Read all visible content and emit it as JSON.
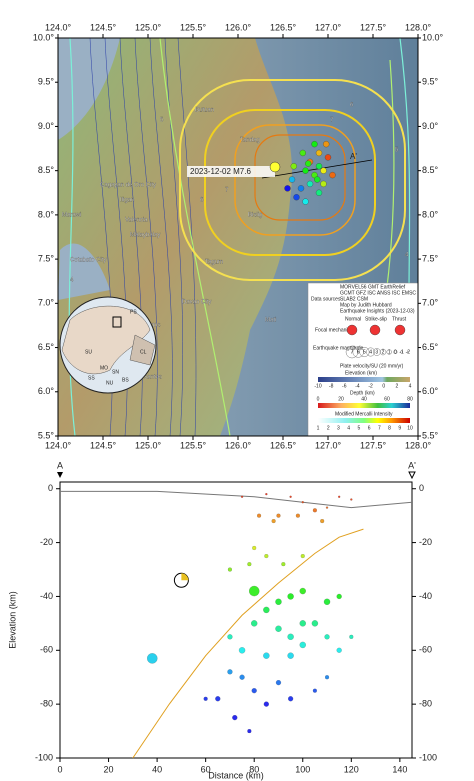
{
  "map": {
    "lon_ticks": [
      {
        "value": 124,
        "label": "124.0°"
      },
      {
        "value": 124.5,
        "label": "124.5°"
      },
      {
        "value": 125,
        "label": "125.0°"
      },
      {
        "value": 125.5,
        "label": "125.5°"
      },
      {
        "value": 126,
        "label": "126.0°"
      },
      {
        "value": 126.5,
        "label": "126.5°"
      },
      {
        "value": 127,
        "label": "127.0°"
      },
      {
        "value": 127.5,
        "label": "127.5°"
      },
      {
        "value": 128,
        "label": "128.0°"
      }
    ],
    "lat_ticks": [
      {
        "value": 10,
        "label": "10.0°"
      },
      {
        "value": 9.5,
        "label": "9.5°"
      },
      {
        "value": 9,
        "label": "9.0°"
      },
      {
        "value": 8.5,
        "label": "8.5°"
      },
      {
        "value": 8,
        "label": "8.0°"
      },
      {
        "value": 7.5,
        "label": "7.5°"
      },
      {
        "value": 7,
        "label": "7.0°"
      },
      {
        "value": 6.5,
        "label": "6.5°"
      },
      {
        "value": 6,
        "label": "6.0°"
      },
      {
        "value": 5.5,
        "label": "5.5°"
      }
    ],
    "lonlim": [
      124,
      128
    ],
    "latlim": [
      5.5,
      10
    ],
    "event_label": "2023-12-02 M7.6",
    "profile_start": "A",
    "profile_end": "A'",
    "places": [
      "Cagayan de Oro City",
      "Iligan",
      "Marawi",
      "Valencia",
      "Malaybalay",
      "Davao City",
      "Tagum",
      "Digos",
      "General Santos",
      "Bislig",
      "Tandag",
      "Mati",
      "Cotabato City",
      "Butuan"
    ],
    "contour_labels": [
      "6",
      "5",
      "7",
      "4",
      "6",
      "5",
      "7",
      "4"
    ],
    "inset_labels": [
      "PS",
      "SU",
      "CL",
      "MO",
      "SS",
      "SN",
      "BS",
      "NU"
    ],
    "events": [
      {
        "lon": 126.62,
        "lat": 8.55,
        "depth": 30
      },
      {
        "lon": 126.75,
        "lat": 8.5,
        "depth": 40
      },
      {
        "lon": 126.8,
        "lat": 8.6,
        "depth": 10
      },
      {
        "lon": 126.85,
        "lat": 8.45,
        "depth": 35
      },
      {
        "lon": 126.9,
        "lat": 8.55,
        "depth": 45
      },
      {
        "lon": 126.95,
        "lat": 8.5,
        "depth": 20
      },
      {
        "lon": 126.8,
        "lat": 8.35,
        "depth": 55
      },
      {
        "lon": 126.7,
        "lat": 8.3,
        "depth": 70
      },
      {
        "lon": 126.9,
        "lat": 8.7,
        "depth": 15
      },
      {
        "lon": 126.85,
        "lat": 8.8,
        "depth": 40
      },
      {
        "lon": 127.0,
        "lat": 8.65,
        "depth": 5
      },
      {
        "lon": 126.65,
        "lat": 8.2,
        "depth": 75
      },
      {
        "lon": 126.75,
        "lat": 8.15,
        "depth": 60
      },
      {
        "lon": 126.95,
        "lat": 8.35,
        "depth": 25
      },
      {
        "lon": 127.05,
        "lat": 8.45,
        "depth": 8
      },
      {
        "lon": 126.6,
        "lat": 8.4,
        "depth": 65
      },
      {
        "lon": 126.9,
        "lat": 8.25,
        "depth": 50
      },
      {
        "lon": 126.72,
        "lat": 8.7,
        "depth": 35
      },
      {
        "lon": 126.98,
        "lat": 8.8,
        "depth": 12
      },
      {
        "lon": 126.55,
        "lat": 8.3,
        "depth": 80
      },
      {
        "lon": 126.88,
        "lat": 8.4,
        "depth": 42
      },
      {
        "lon": 126.78,
        "lat": 8.58,
        "depth": 38
      }
    ],
    "legend": {
      "data_sources_title": "Data sources",
      "data_sources": [
        "MORVEL56 GMT EarthRelief",
        "GCMT GFZ ISC ANSS ISC EMSC",
        "SLAB2 CSM",
        "Map by Judith Hubbard",
        "Earthquake Insights (2023-12-03)"
      ],
      "mech_types": [
        "Normal",
        "Strike-slip",
        "Thrust"
      ],
      "mech_title": "Focal mechanism",
      "mag_title": "Earthquake magnitude",
      "mags": [
        7,
        6,
        5,
        4,
        3,
        2,
        1,
        0,
        -1,
        -2
      ],
      "velocity": "Plate velocity/SU (20 mm/yr)",
      "elev_title": "Elevation (km)",
      "elev_ticks": [
        -10,
        -8,
        -6,
        -4,
        -2,
        0,
        2,
        4
      ],
      "depth_title": "Depth (km)",
      "depth_ticks": [
        0,
        20,
        40,
        60,
        80
      ],
      "mmi_title": "Modified Mercalli Intensity",
      "mmi_ticks": [
        1,
        2,
        3,
        4,
        5,
        6,
        7,
        8,
        9,
        10
      ]
    }
  },
  "chart_data": {
    "type": "scatter",
    "xlabel": "Distance (km)",
    "ylabel": "Elevation (km)",
    "start": "A",
    "end": "A'",
    "xlim": [
      0,
      145
    ],
    "ylim": [
      -100,
      2.5
    ],
    "xticks": [
      0,
      20,
      40,
      60,
      80,
      100,
      120,
      140
    ],
    "yticks": [
      0,
      -20,
      -40,
      -60,
      -80,
      -100
    ],
    "x": [
      75,
      85,
      95,
      100,
      105,
      110,
      115,
      120,
      90,
      98,
      82,
      88,
      108,
      80,
      85,
      78,
      92,
      70,
      100,
      80,
      90,
      95,
      100,
      110,
      115,
      85,
      80,
      90,
      95,
      100,
      105,
      110,
      115,
      75,
      85,
      70,
      120,
      38,
      95,
      100,
      70,
      75,
      65,
      80,
      90,
      95,
      85,
      72,
      110,
      105,
      60,
      78
    ],
    "series": [
      {
        "name": "Earthquakes",
        "values": [
          -3,
          -2,
          -3,
          -5,
          -8,
          -7,
          -3,
          -4,
          -10,
          -10,
          -10,
          -12,
          -12,
          -22,
          -25,
          -28,
          -28,
          -30,
          -25,
          -38,
          -42,
          -40,
          -38,
          -42,
          -40,
          -45,
          -50,
          -52,
          -55,
          -58,
          -50,
          -55,
          -60,
          -60,
          -62,
          -55,
          -55,
          -63,
          -62,
          -50,
          -68,
          -70,
          -78,
          -75,
          -72,
          -78,
          -80,
          -85,
          -70,
          -75,
          -78,
          -90
        ],
        "sizes": [
          2,
          2,
          2,
          2,
          3,
          2,
          2,
          2,
          3,
          3,
          3,
          3,
          3,
          3,
          3,
          3,
          3,
          3,
          3,
          5.5,
          4,
          4,
          4,
          4,
          3.5,
          4,
          4,
          4,
          4,
          4,
          4,
          3.5,
          3.5,
          4,
          4,
          3.5,
          3,
          5.5,
          4,
          4,
          3.5,
          3.5,
          3.5,
          3.5,
          3.5,
          3.5,
          3.5,
          3.5,
          3,
          3,
          3,
          3
        ]
      }
    ],
    "topography": {
      "x": [
        0,
        40,
        80,
        100,
        120,
        145
      ],
      "y": [
        -1,
        -1,
        -3,
        -5,
        -7,
        -5
      ]
    },
    "slab": {
      "x": [
        30,
        45,
        60,
        75,
        90,
        105,
        115,
        125
      ],
      "y": [
        -100,
        -80,
        -62,
        -47,
        -35,
        -24,
        -18,
        -15
      ]
    }
  }
}
